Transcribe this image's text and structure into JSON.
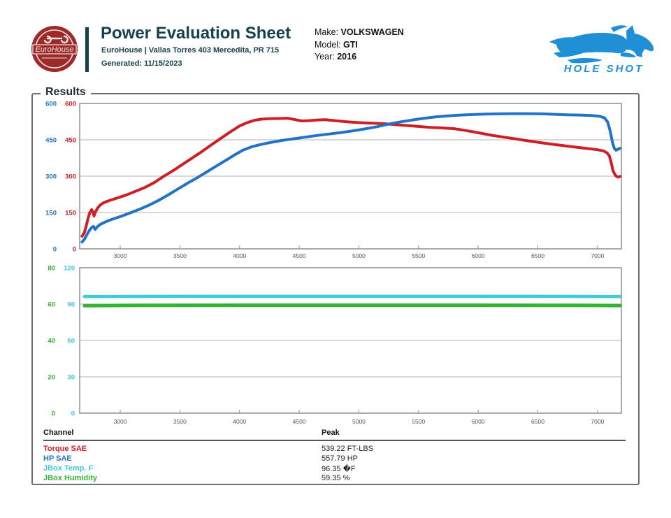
{
  "header": {
    "logo_text": "EuroHouse",
    "title": "Power Evaluation Sheet",
    "address": "EuroHouse | Vallas Torres 403 Mercedita, PR 715",
    "generated": "Generated: 11/15/2023",
    "brand_color": "#17414c",
    "logo_color": "#9d2a2a"
  },
  "vehicle": {
    "make_label": "Make:",
    "make": "VOLKSWAGEN",
    "model_label": "Model:",
    "model": "GTI",
    "year_label": "Year:",
    "year": "2016"
  },
  "holeshot": {
    "label": "HOLE SHOT",
    "color": "#1f8fd6"
  },
  "results_label": "Results",
  "chart_data": [
    {
      "type": "line",
      "title": "Power / Torque vs RPM",
      "x_range": [
        2660,
        7200
      ],
      "x_ticks": [
        3000,
        3500,
        4000,
        4500,
        5000,
        5500,
        6000,
        6500,
        7000
      ],
      "grid": true,
      "axes": [
        {
          "name": "HP SAE axis",
          "color": "#2273c8",
          "range": [
            0,
            600
          ],
          "ticks": [
            0,
            150,
            300,
            450,
            600
          ]
        },
        {
          "name": "Torque SAE axis",
          "color": "#cc2026",
          "range": [
            0,
            600
          ],
          "ticks": [
            0,
            150,
            300,
            450,
            600
          ]
        }
      ],
      "series": [
        {
          "name": "Torque SAE",
          "color": "#cc2026",
          "axis": 1,
          "width": 4,
          "points": [
            [
              2680,
              52
            ],
            [
              2700,
              68
            ],
            [
              2715,
              95
            ],
            [
              2730,
              125
            ],
            [
              2745,
              150
            ],
            [
              2760,
              162
            ],
            [
              2770,
              152
            ],
            [
              2780,
              136
            ],
            [
              2795,
              155
            ],
            [
              2810,
              168
            ],
            [
              2830,
              180
            ],
            [
              2860,
              190
            ],
            [
              2900,
              198
            ],
            [
              2950,
              206
            ],
            [
              3000,
              214
            ],
            [
              3060,
              224
            ],
            [
              3120,
              236
            ],
            [
              3200,
              252
            ],
            [
              3280,
              272
            ],
            [
              3360,
              298
            ],
            [
              3440,
              322
            ],
            [
              3520,
              348
            ],
            [
              3600,
              374
            ],
            [
              3680,
              400
            ],
            [
              3760,
              428
            ],
            [
              3840,
              455
            ],
            [
              3920,
              482
            ],
            [
              4000,
              507
            ],
            [
              4060,
              520
            ],
            [
              4120,
              530
            ],
            [
              4180,
              535
            ],
            [
              4250,
              537
            ],
            [
              4330,
              538
            ],
            [
              4400,
              539
            ],
            [
              4460,
              534
            ],
            [
              4520,
              528
            ],
            [
              4580,
              529
            ],
            [
              4650,
              532
            ],
            [
              4720,
              533
            ],
            [
              4800,
              529
            ],
            [
              4900,
              524
            ],
            [
              5000,
              521
            ],
            [
              5100,
              519
            ],
            [
              5200,
              517
            ],
            [
              5300,
              513
            ],
            [
              5400,
              509
            ],
            [
              5500,
              505
            ],
            [
              5600,
              501
            ],
            [
              5700,
              499
            ],
            [
              5800,
              496
            ],
            [
              5900,
              488
            ],
            [
              6000,
              479
            ],
            [
              6100,
              470
            ],
            [
              6200,
              462
            ],
            [
              6300,
              455
            ],
            [
              6400,
              447
            ],
            [
              6500,
              440
            ],
            [
              6600,
              433
            ],
            [
              6700,
              427
            ],
            [
              6800,
              421
            ],
            [
              6900,
              415
            ],
            [
              7000,
              409
            ],
            [
              7050,
              404
            ],
            [
              7080,
              396
            ],
            [
              7100,
              383
            ],
            [
              7115,
              355
            ],
            [
              7130,
              322
            ],
            [
              7150,
              303
            ],
            [
              7170,
              296
            ],
            [
              7190,
              299
            ]
          ]
        },
        {
          "name": "HP SAE",
          "color": "#2273c8",
          "axis": 0,
          "width": 4,
          "points": [
            [
              2680,
              28
            ],
            [
              2700,
              40
            ],
            [
              2720,
              58
            ],
            [
              2740,
              75
            ],
            [
              2760,
              88
            ],
            [
              2775,
              93
            ],
            [
              2790,
              80
            ],
            [
              2805,
              90
            ],
            [
              2830,
              100
            ],
            [
              2870,
              110
            ],
            [
              2920,
              120
            ],
            [
              3000,
              133
            ],
            [
              3080,
              148
            ],
            [
              3160,
              163
            ],
            [
              3240,
              180
            ],
            [
              3320,
              200
            ],
            [
              3400,
              222
            ],
            [
              3480,
              246
            ],
            [
              3560,
              270
            ],
            [
              3640,
              292
            ],
            [
              3720,
              316
            ],
            [
              3800,
              340
            ],
            [
              3880,
              364
            ],
            [
              3960,
              388
            ],
            [
              4030,
              408
            ],
            [
              4100,
              421
            ],
            [
              4170,
              430
            ],
            [
              4250,
              438
            ],
            [
              4350,
              447
            ],
            [
              4450,
              454
            ],
            [
              4550,
              461
            ],
            [
              4650,
              468
            ],
            [
              4750,
              474
            ],
            [
              4850,
              480
            ],
            [
              4950,
              487
            ],
            [
              5050,
              495
            ],
            [
              5150,
              504
            ],
            [
              5250,
              515
            ],
            [
              5350,
              524
            ],
            [
              5450,
              532
            ],
            [
              5550,
              539
            ],
            [
              5650,
              545
            ],
            [
              5750,
              549
            ],
            [
              5850,
              552
            ],
            [
              5950,
              554
            ],
            [
              6050,
              556
            ],
            [
              6150,
              557
            ],
            [
              6250,
              558
            ],
            [
              6350,
              558
            ],
            [
              6450,
              558
            ],
            [
              6550,
              557
            ],
            [
              6650,
              555
            ],
            [
              6750,
              553
            ],
            [
              6850,
              552
            ],
            [
              6950,
              550
            ],
            [
              7020,
              547
            ],
            [
              7060,
              540
            ],
            [
              7085,
              523
            ],
            [
              7105,
              488
            ],
            [
              7125,
              440
            ],
            [
              7140,
              415
            ],
            [
              7155,
              407
            ],
            [
              7175,
              412
            ],
            [
              7190,
              415
            ]
          ]
        }
      ]
    },
    {
      "type": "line",
      "title": "JBox Temperature / Humidity vs RPM",
      "x_range": [
        2660,
        7200
      ],
      "x_ticks": [
        3000,
        3500,
        4000,
        4500,
        5000,
        5500,
        6000,
        6500,
        7000
      ],
      "grid": true,
      "axes": [
        {
          "name": "JBox Humidity axis",
          "color": "#35b335",
          "range": [
            0,
            80
          ],
          "ticks": [
            0,
            20,
            40,
            60,
            80
          ]
        },
        {
          "name": "JBox Temp F axis",
          "color": "#3fc9dd",
          "range": [
            0,
            120
          ],
          "ticks": [
            0,
            30,
            60,
            90,
            120
          ]
        }
      ],
      "series": [
        {
          "name": "JBox Temp. F",
          "color": "#3fc9dd",
          "axis": 1,
          "width": 4.5,
          "points": [
            [
              2700,
              96.3
            ],
            [
              3500,
              96.4
            ],
            [
              4500,
              96.4
            ],
            [
              5500,
              96.4
            ],
            [
              6500,
              96.4
            ],
            [
              7190,
              96.3
            ]
          ]
        },
        {
          "name": "JBox Humidity",
          "color": "#35b335",
          "axis": 0,
          "width": 5,
          "points": [
            [
              2700,
              59.1
            ],
            [
              3200,
              59.3
            ],
            [
              4000,
              59.4
            ],
            [
              5000,
              59.4
            ],
            [
              6000,
              59.4
            ],
            [
              6800,
              59.3
            ],
            [
              7190,
              59.2
            ]
          ]
        }
      ]
    }
  ],
  "table": {
    "headers": {
      "channel": "Channel",
      "peak": "Peak"
    },
    "rows": [
      {
        "channel": "Torque SAE",
        "color": "#cc2026",
        "peak": "539.22 FT-LBS"
      },
      {
        "channel": "HP SAE",
        "color": "#2273c8",
        "peak": "557.79 HP"
      },
      {
        "channel": "JBox Temp. F",
        "color": "#3fc9dd",
        "peak": "96.35 �F"
      },
      {
        "channel": "JBox Humidity",
        "color": "#35b335",
        "peak": "59.35 %"
      }
    ]
  }
}
